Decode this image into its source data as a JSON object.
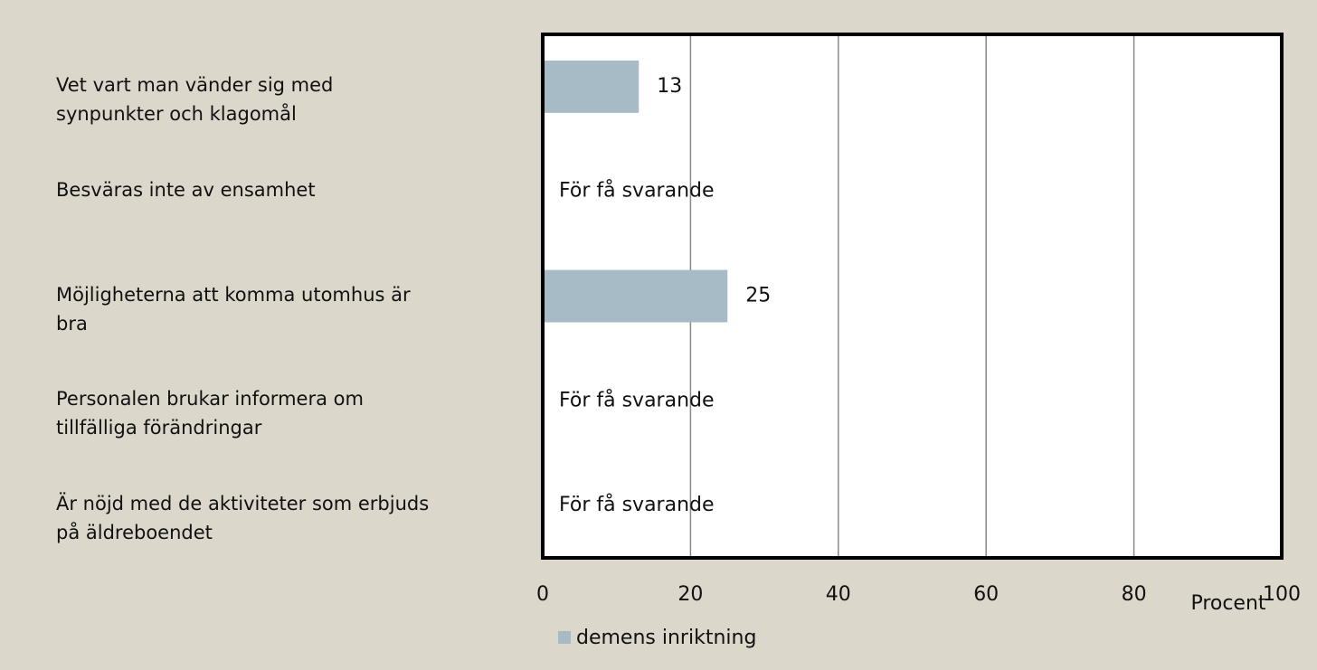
{
  "chart_data": {
    "type": "hbar",
    "categories": [
      "Vet vart man vänder sig med synpunkter och klagomål",
      "Besväras inte av ensamhet",
      "Möjligheterna att komma utomhus är bra",
      "Personalen brukar informera om tillfälliga förändringar",
      "Är nöjd med de aktiviteter som erbjuds på äldreboendet"
    ],
    "series": [
      {
        "name": "demens inriktning",
        "color": "#a7bbc6",
        "values": [
          13,
          null,
          25,
          null,
          null
        ]
      }
    ],
    "annotations": [
      null,
      "För få svarande",
      null,
      "För få svarande",
      "För få svarande"
    ],
    "x_label": "Procent",
    "xlim": [
      0,
      100
    ],
    "xticks": [
      0,
      20,
      40,
      60,
      80,
      100
    ],
    "grid": true,
    "legend": "bottom"
  }
}
